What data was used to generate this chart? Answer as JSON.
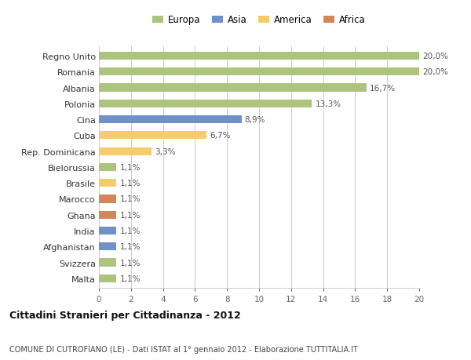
{
  "countries": [
    "Malta",
    "Svizzera",
    "Afghanistan",
    "India",
    "Ghana",
    "Marocco",
    "Brasile",
    "Bielorussia",
    "Rep. Dominicana",
    "Cuba",
    "Cina",
    "Polonia",
    "Albania",
    "Romania",
    "Regno Unito"
  ],
  "values": [
    1.1,
    1.1,
    1.1,
    1.1,
    1.1,
    1.1,
    1.1,
    1.1,
    3.3,
    6.7,
    8.9,
    13.3,
    16.7,
    20.0,
    20.0
  ],
  "labels": [
    "1,1%",
    "1,1%",
    "1,1%",
    "1,1%",
    "1,1%",
    "1,1%",
    "1,1%",
    "1,1%",
    "3,3%",
    "6,7%",
    "8,9%",
    "13,3%",
    "16,7%",
    "20,0%",
    "20,0%"
  ],
  "colors": [
    "#adc47e",
    "#adc47e",
    "#7090c8",
    "#7090c8",
    "#d4855a",
    "#d4855a",
    "#f5cc6a",
    "#adc47e",
    "#f5cc6a",
    "#f5cc6a",
    "#7090c8",
    "#adc47e",
    "#adc47e",
    "#adc47e",
    "#adc47e"
  ],
  "legend": {
    "Europa": "#adc47e",
    "Asia": "#7090c8",
    "America": "#f5cc6a",
    "Africa": "#d4855a"
  },
  "xlim": [
    0,
    20
  ],
  "xticks": [
    0,
    2,
    4,
    6,
    8,
    10,
    12,
    14,
    16,
    18,
    20
  ],
  "title": "Cittadini Stranieri per Cittadinanza - 2012",
  "subtitle": "COMUNE DI CUTROFIANO (LE) - Dati ISTAT al 1° gennaio 2012 - Elaborazione TUTTITALIA.IT",
  "background_color": "#ffffff",
  "grid_color": "#cccccc"
}
